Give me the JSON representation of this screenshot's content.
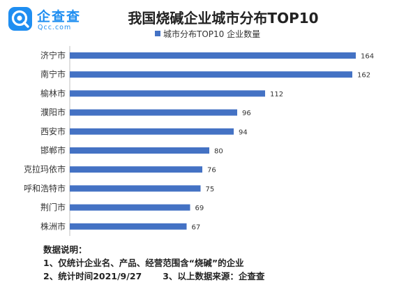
{
  "brand": {
    "name": "企查查",
    "domain": "Qcc.com",
    "color": "#1f8ef1",
    "icon": "qcc-logo-icon"
  },
  "chart_data": {
    "type": "bar",
    "orientation": "horizontal",
    "title": "我国烧碱企业城市分布TOP10",
    "categories": [
      "济宁市",
      "南宁市",
      "榆林市",
      "濮阳市",
      "西安市",
      "邯郸市",
      "克拉玛依市",
      "呼和浩特市",
      "荆门市",
      "株洲市"
    ],
    "series": [
      {
        "name": "城市分布TOP10 企业数量",
        "color": "#4472c4",
        "values": [
          164,
          162,
          112,
          96,
          94,
          80,
          76,
          75,
          69,
          67
        ]
      }
    ],
    "xlim": [
      0,
      180
    ],
    "grid": false,
    "legend": "top-center",
    "data_labels": true
  },
  "notes": {
    "heading": "数据说明：",
    "line1": "1、仅统计企业名、产品、经营范围含“烧碱”的企业",
    "line2a": "2、统计时间2021/9/27",
    "line2b": "3、以上数据来源：企查查"
  }
}
